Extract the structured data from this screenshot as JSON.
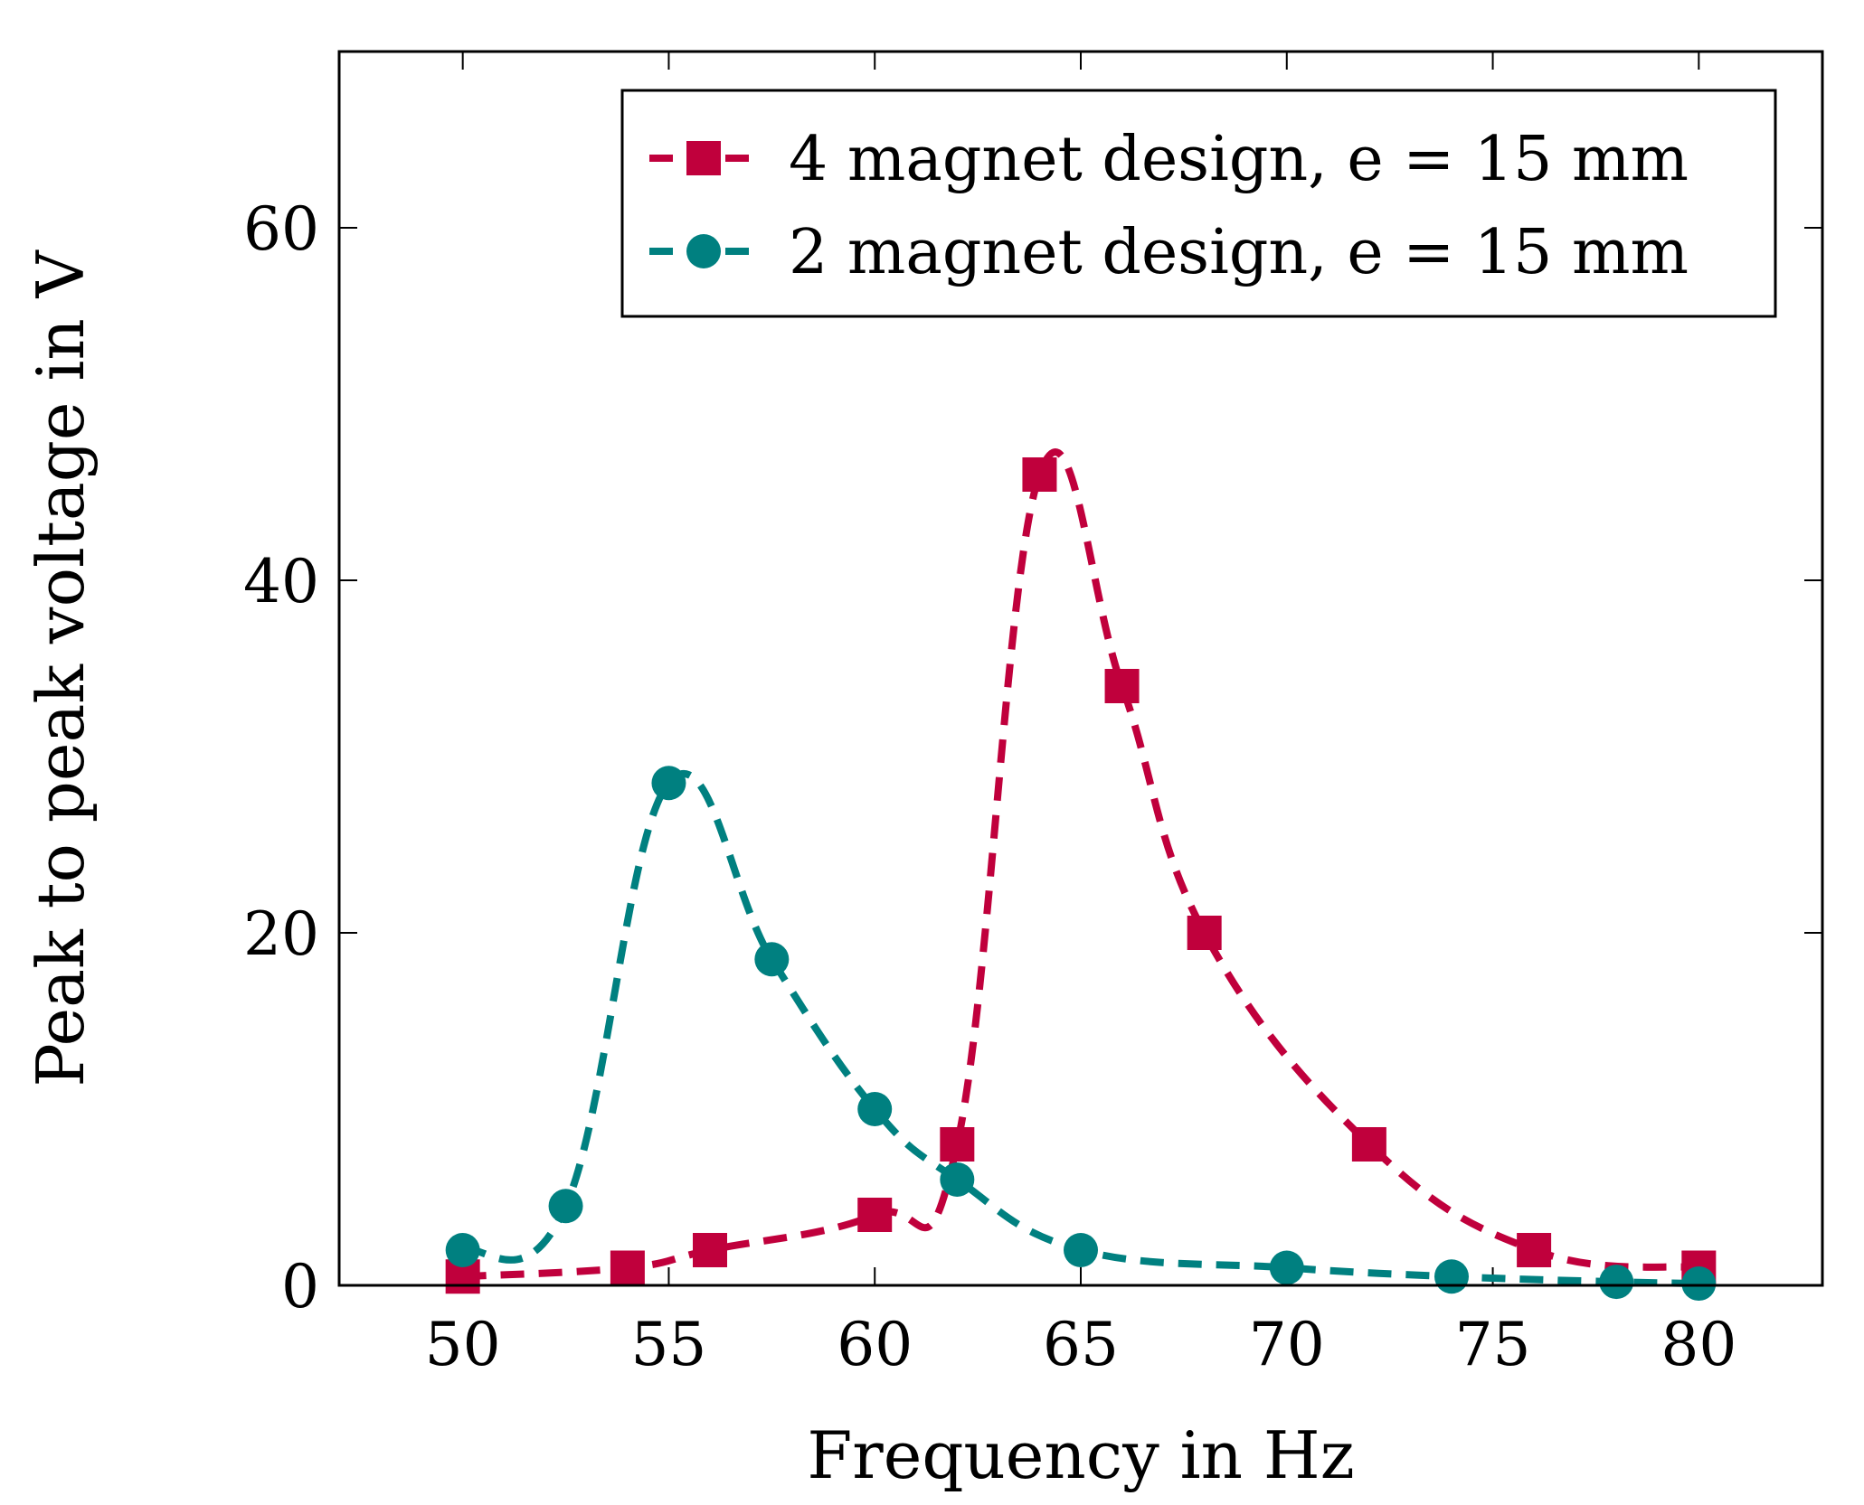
{
  "chart_data": {
    "type": "line",
    "title": "",
    "xlabel": "Frequency in Hz",
    "ylabel": "Peak to peak voltage in V",
    "xlim": [
      47,
      83
    ],
    "ylim": [
      0,
      70
    ],
    "xticks": [
      50,
      55,
      60,
      65,
      70,
      75,
      80
    ],
    "yticks": [
      0,
      20,
      40,
      60
    ],
    "grid": false,
    "legend_position": "top-right",
    "series": [
      {
        "name": "4 magnet design, e = 15 mm",
        "color": "#c0003c",
        "marker": "square",
        "line_style": "dashed",
        "x": [
          50,
          54,
          56,
          60,
          62,
          64,
          66,
          68,
          72,
          76,
          80
        ],
        "y": [
          0.5,
          1,
          2,
          4,
          8,
          46,
          34,
          20,
          8,
          2,
          1
        ]
      },
      {
        "name": "2 magnet design, e = 15 mm",
        "color": "#008080",
        "marker": "circle",
        "line_style": "dashed",
        "x": [
          50,
          52.5,
          55,
          57.5,
          60,
          62,
          65,
          70,
          74,
          78,
          80
        ],
        "y": [
          2,
          4.5,
          28.5,
          18.5,
          10,
          6,
          2,
          1,
          0.5,
          0.2,
          0.1
        ]
      }
    ]
  }
}
